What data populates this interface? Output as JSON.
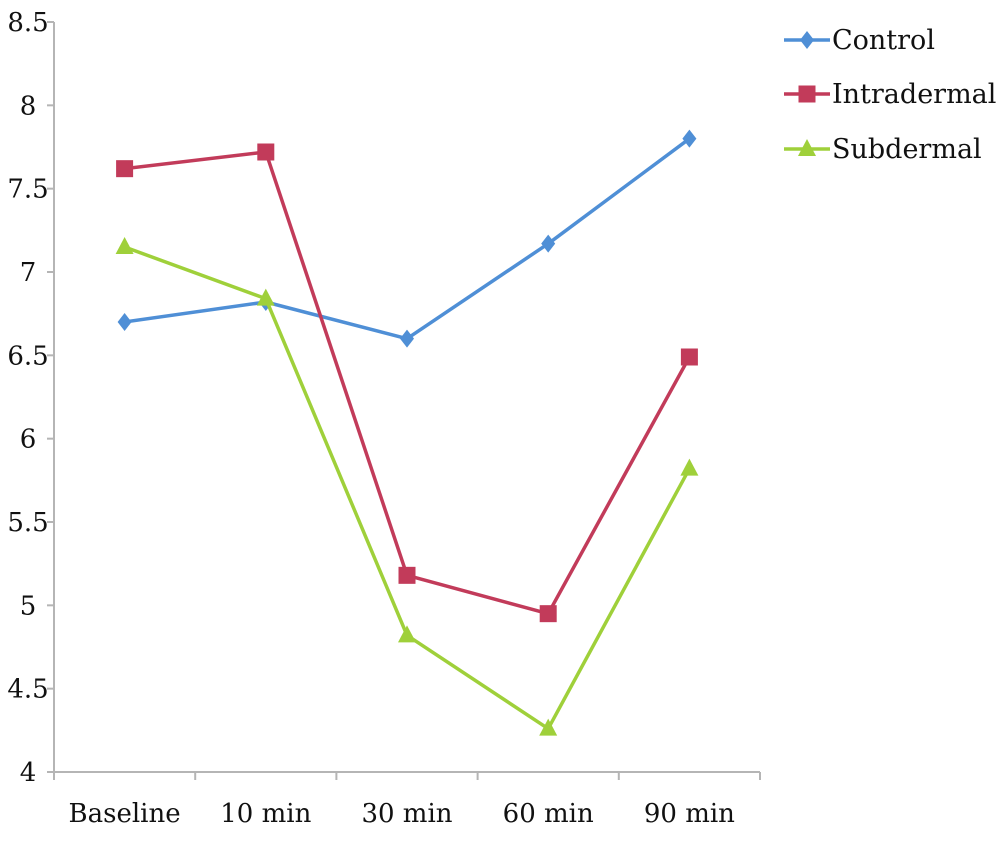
{
  "chart_data": {
    "type": "line",
    "title": "",
    "xlabel": "",
    "ylabel": "",
    "categories": [
      "Baseline",
      "10 min",
      "30 min",
      "60 min",
      "90 min"
    ],
    "ylim": [
      4,
      8.5
    ],
    "yticks": [
      "4",
      "4.5",
      "5",
      "5.5",
      "6",
      "6.5",
      "7",
      "7.5",
      "8",
      "8.5"
    ],
    "grid": false,
    "legend_position": "top-right",
    "series": [
      {
        "name": "Control",
        "color": "#4f8fd6",
        "marker": "diamond",
        "values": [
          6.7,
          6.82,
          6.6,
          7.17,
          7.8
        ]
      },
      {
        "name": "Intradermal",
        "color": "#c23b5a",
        "marker": "square",
        "values": [
          7.62,
          7.72,
          5.18,
          4.95,
          6.49
        ]
      },
      {
        "name": "Subdermal",
        "color": "#9fd03a",
        "marker": "triangle",
        "values": [
          7.15,
          6.84,
          4.82,
          4.26,
          5.82
        ]
      }
    ]
  }
}
